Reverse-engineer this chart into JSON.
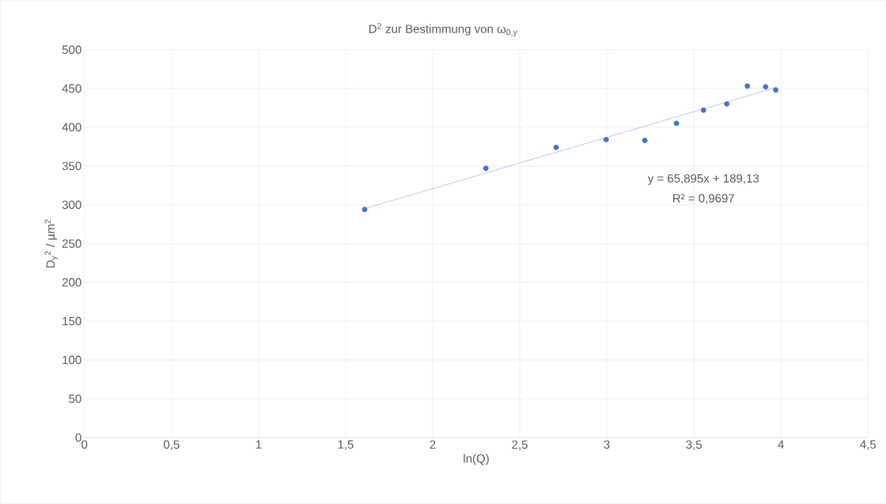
{
  "chart_data": {
    "type": "scatter",
    "title": "D$^{2}$ zur Bestimmung von ω$_{0,y}$",
    "xlabel": "ln(Q)",
    "ylabel": "D$_{y}$$^{2}$ / µm$^{2}$",
    "xlim": [
      0,
      4.5
    ],
    "ylim": [
      0,
      500
    ],
    "xticks": [
      0,
      {
        "value": 0.5,
        "label": "0,5"
      },
      1,
      {
        "value": 1.5,
        "label": "1,5"
      },
      2,
      {
        "value": 2.5,
        "label": "2,5"
      },
      3,
      {
        "value": 3.5,
        "label": "3,5"
      },
      4,
      {
        "value": 4.5,
        "label": "4,5"
      }
    ],
    "yticks": [
      0,
      50,
      100,
      150,
      200,
      250,
      300,
      350,
      400,
      450,
      500
    ],
    "grid": true,
    "series": [
      {
        "marker": "circle",
        "color": "#4472c4",
        "x": [
          1.609,
          2.305,
          2.709,
          2.996,
          3.218,
          3.4,
          3.555,
          3.689,
          3.807,
          3.912,
          3.97
        ],
        "values": [
          294,
          347,
          374,
          384,
          383,
          405,
          422,
          430,
          453,
          452,
          448
        ]
      },
      {
        "type": "line",
        "color": "#4472c4",
        "line_style": "dotted",
        "marker": "none",
        "x": [
          1.609,
          3.97
        ],
        "values": [
          295,
          451
        ]
      }
    ],
    "annotations": [
      "y = 65,895x + 189,13",
      "R² = 0,9697"
    ]
  }
}
